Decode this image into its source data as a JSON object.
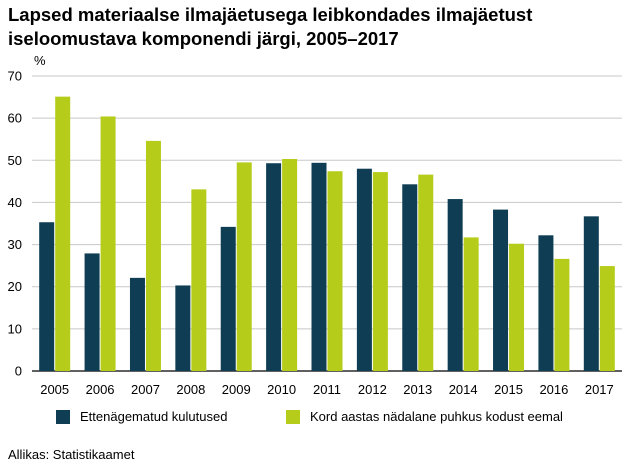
{
  "chart_data": {
    "type": "bar",
    "title": "Lapsed materiaalse ilmajäetusega leibkondades ilmajäetust iseloomustava komponendi järgi, 2005–2017",
    "ylabel": "%",
    "xlabel": "",
    "ylim": [
      0,
      70
    ],
    "yticks": [
      0,
      10,
      20,
      30,
      40,
      50,
      60,
      70
    ],
    "grid": "horizontal",
    "legend_position": "bottom",
    "categories": [
      "2005",
      "2006",
      "2007",
      "2008",
      "2009",
      "2010",
      "2011",
      "2012",
      "2013",
      "2014",
      "2015",
      "2016",
      "2017"
    ],
    "series": [
      {
        "name": "Ettenägematud kulutused",
        "color": "#0e3d54",
        "values": [
          35.3,
          27.9,
          22.1,
          20.3,
          34.2,
          49.3,
          49.4,
          48.0,
          44.3,
          40.8,
          38.3,
          32.2,
          36.7
        ]
      },
      {
        "name": "Kord aastas nädalane puhkus kodust eemal",
        "color": "#b5cc1a",
        "values": [
          65.1,
          60.4,
          54.6,
          43.1,
          49.5,
          50.3,
          47.4,
          47.2,
          46.6,
          31.7,
          30.2,
          26.6,
          24.9
        ]
      }
    ]
  },
  "source": "Allikas: Statistikaamet"
}
